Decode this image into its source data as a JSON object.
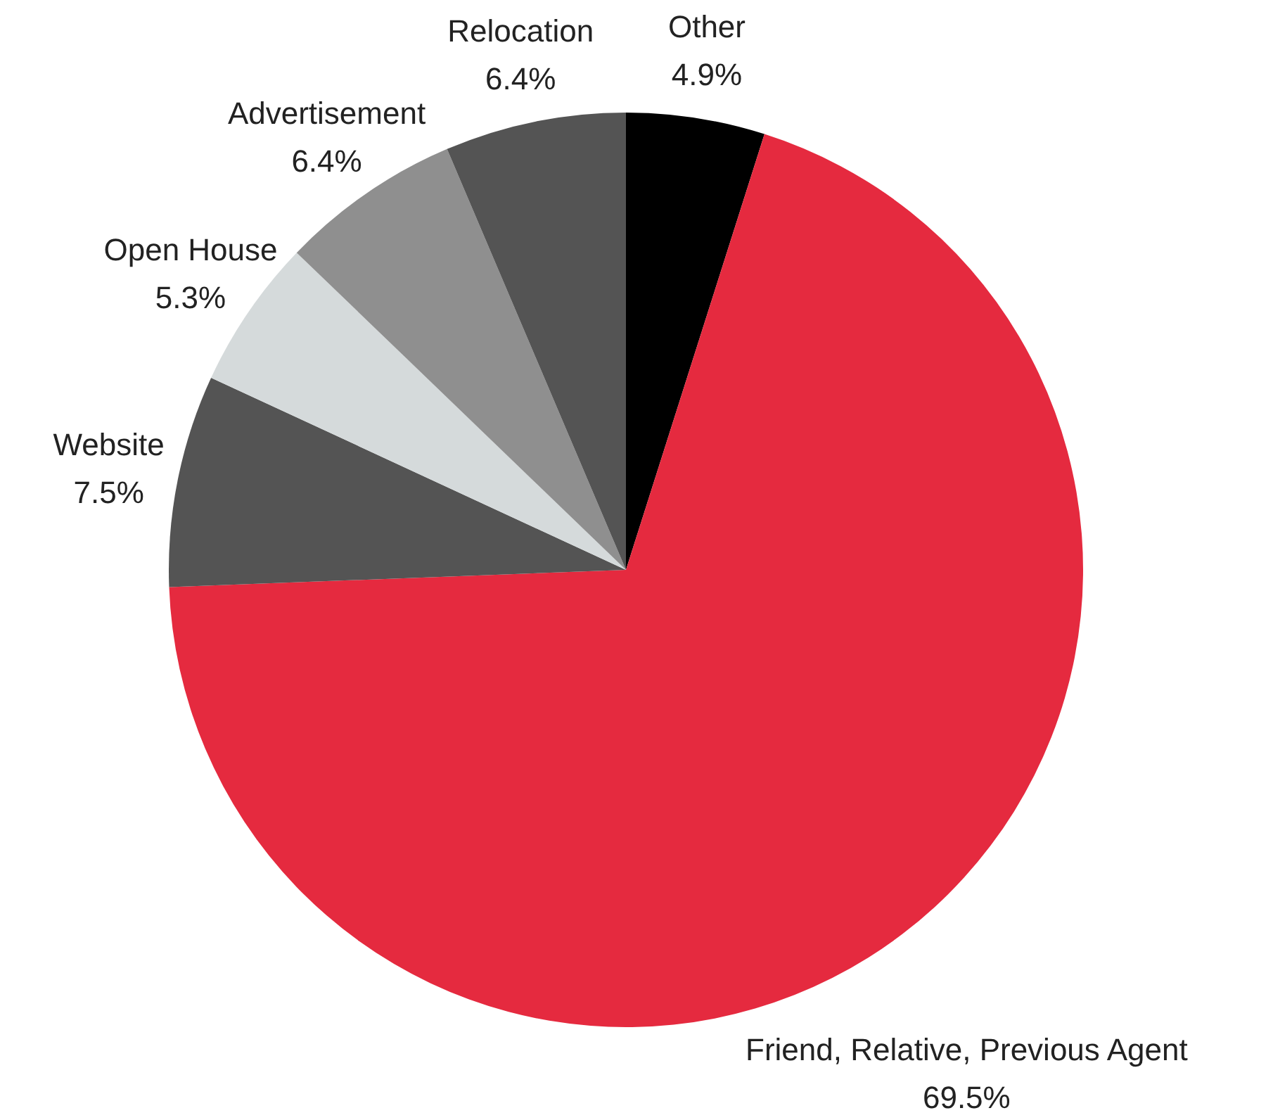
{
  "chart_data": {
    "type": "pie",
    "categories": [
      "Other",
      "Friend, Relative, Previous Agent",
      "Website",
      "Open House",
      "Advertisement",
      "Relocation"
    ],
    "values": [
      4.9,
      69.5,
      7.5,
      5.3,
      6.4,
      6.4
    ],
    "value_labels": [
      "4.9%",
      "69.5%",
      "7.5%",
      "5.3%",
      "6.4%",
      "6.4%"
    ],
    "colors": [
      "#000000",
      "#e52a3f",
      "#545454",
      "#d5dadb",
      "#8f8f8f",
      "#545454"
    ]
  }
}
